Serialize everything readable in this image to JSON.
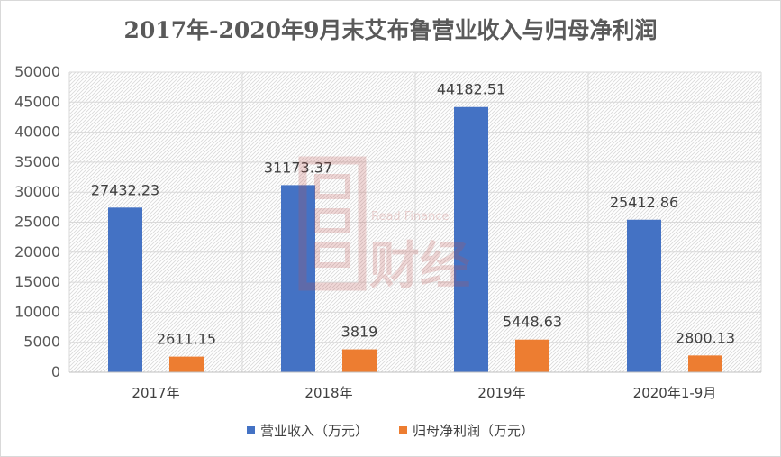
{
  "chart_data": {
    "type": "bar",
    "title": "2017年-2020年9月末艾布鲁营业收入与归母净利润",
    "categories": [
      "2017年",
      "2018年",
      "2019年",
      "2020年1-9月"
    ],
    "series": [
      {
        "name": "营业收入（万元）",
        "color": "#4472c4",
        "values": [
          27432.23,
          31173.37,
          44182.51,
          25412.86
        ],
        "labels": [
          "27432.23",
          "31173.37",
          "44182.51",
          "25412.86"
        ]
      },
      {
        "name": "归母净利润（万元）",
        "color": "#ed7d31",
        "values": [
          2611.15,
          3819,
          5448.63,
          2800.13
        ],
        "labels": [
          "2611.15",
          "3819",
          "5448.63",
          "2800.13"
        ]
      }
    ],
    "ylim": [
      0,
      50000
    ],
    "yticks": [
      0,
      5000,
      10000,
      15000,
      20000,
      25000,
      30000,
      35000,
      40000,
      45000,
      50000
    ],
    "grid": true,
    "legend": "bottom",
    "xlabel": "",
    "ylabel": ""
  },
  "watermark": {
    "text": "Read Finance",
    "brand": "财经",
    "color": "#c0504d"
  }
}
